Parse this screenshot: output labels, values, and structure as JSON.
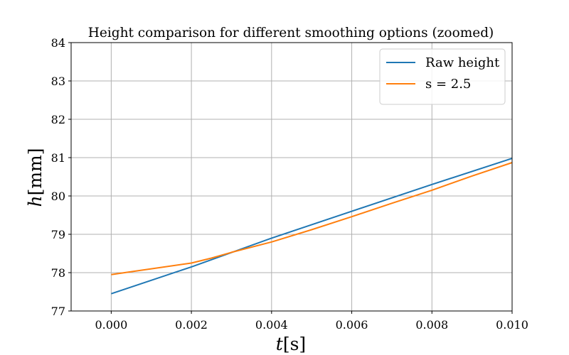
{
  "chart_data": {
    "type": "line",
    "title": "Height comparison for different smoothing options (zoomed)",
    "xlabel": {
      "var": "t",
      "unit": "[s]"
    },
    "ylabel": {
      "var": "h",
      "unit": "[mm]"
    },
    "xlim": [
      -0.001,
      0.01
    ],
    "ylim": [
      77,
      84
    ],
    "xticks": [
      0.0,
      0.002,
      0.004,
      0.006,
      0.008,
      0.01
    ],
    "xtick_labels": [
      "0.000",
      "0.002",
      "0.004",
      "0.006",
      "0.008",
      "0.010"
    ],
    "yticks": [
      77,
      78,
      79,
      80,
      81,
      82,
      83,
      84
    ],
    "ytick_labels": [
      "77",
      "78",
      "79",
      "80",
      "81",
      "82",
      "83",
      "84"
    ],
    "grid": true,
    "legend_position": "top-right",
    "series": [
      {
        "name": "Raw height",
        "color": "#1f77b4",
        "x": [
          0.0,
          0.002,
          0.004,
          0.006,
          0.008,
          0.01
        ],
        "y": [
          77.45,
          78.15,
          78.9,
          79.6,
          80.3,
          80.98
        ]
      },
      {
        "name": "s = 2.5",
        "color": "#ff7f0e",
        "x": [
          0.0,
          0.001,
          0.002,
          0.0025,
          0.003,
          0.004,
          0.005,
          0.006,
          0.007,
          0.008,
          0.009,
          0.01
        ],
        "y": [
          77.95,
          78.1,
          78.25,
          78.38,
          78.53,
          78.8,
          79.12,
          79.46,
          79.81,
          80.15,
          80.52,
          80.87
        ]
      }
    ]
  }
}
